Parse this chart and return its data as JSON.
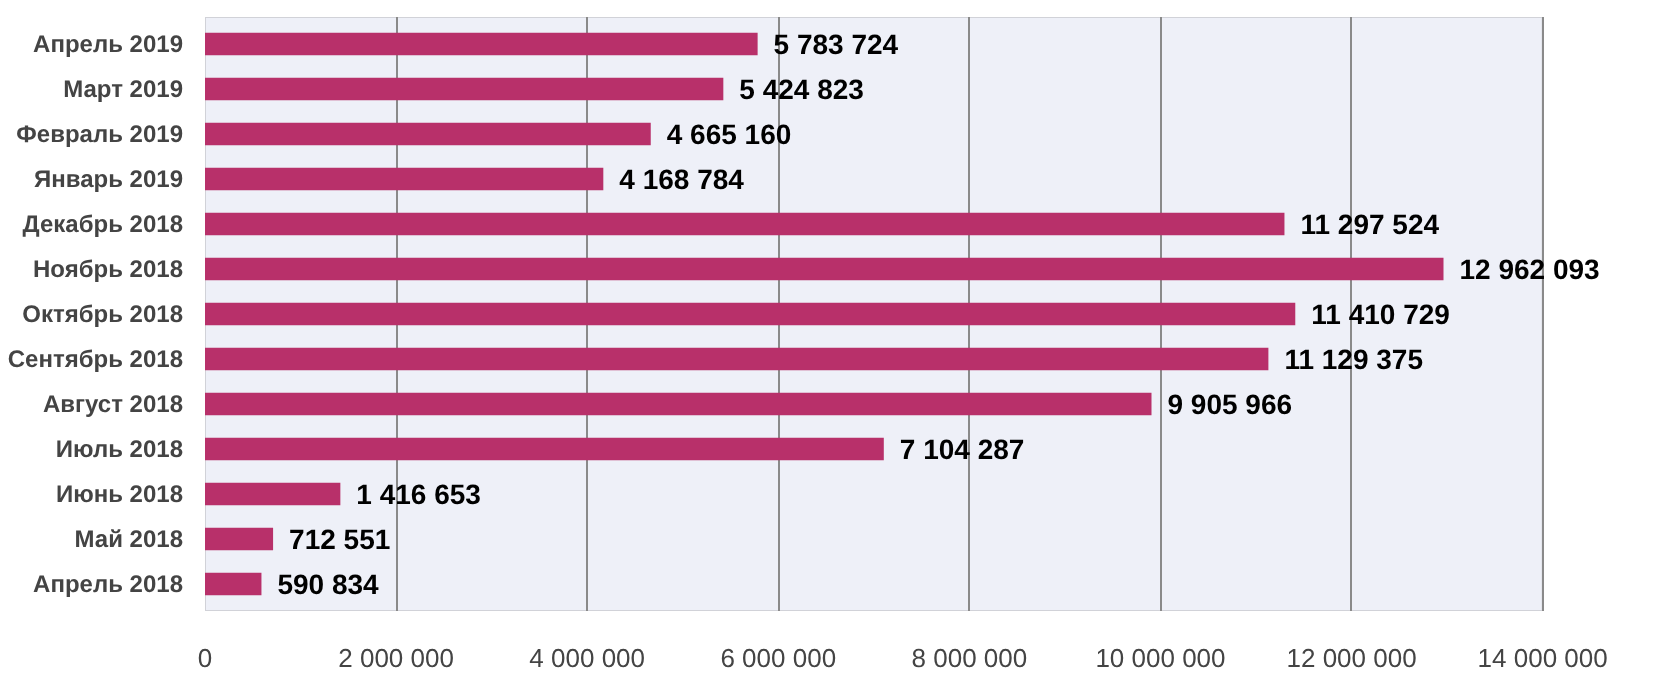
{
  "chart_data": {
    "type": "bar",
    "orientation": "horizontal",
    "categories": [
      "Апрель 2019",
      "Март 2019",
      "Февраль 2019",
      "Январь 2019",
      "Декабрь 2018",
      "Ноябрь 2018",
      "Октябрь 2018",
      "Сентябрь 2018",
      "Август 2018",
      "Июль 2018",
      "Июнь 2018",
      "Май 2018",
      "Апрель 2018"
    ],
    "values": [
      5783724,
      5424823,
      4665160,
      4168784,
      11297524,
      12962093,
      11410729,
      11129375,
      9905966,
      7104287,
      1416653,
      712551,
      590834
    ],
    "value_labels": [
      "5 783 724",
      "5 424 823",
      "4 665 160",
      "4 168 784",
      "11 297 524",
      "12 962 093",
      "11 410 729",
      "11 129 375",
      "9 905 966",
      "7 104 287",
      "1 416 653",
      "712 551",
      "590 834"
    ],
    "color": "#b8306a",
    "xlim": [
      0,
      14000000
    ],
    "xticks": [
      0,
      {
        "value": 2000000,
        "label": "2 000 000"
      },
      {
        "value": 4000000,
        "label": "4 000 000"
      },
      {
        "value": 6000000,
        "label": "6 000 000"
      },
      {
        "value": 8000000,
        "label": "8 000 000"
      },
      {
        "value": 10000000,
        "label": "10 000 000"
      },
      {
        "value": 12000000,
        "label": "12 000 000"
      },
      {
        "value": 14000000,
        "label": "14 000 000"
      }
    ],
    "grid": "x"
  }
}
